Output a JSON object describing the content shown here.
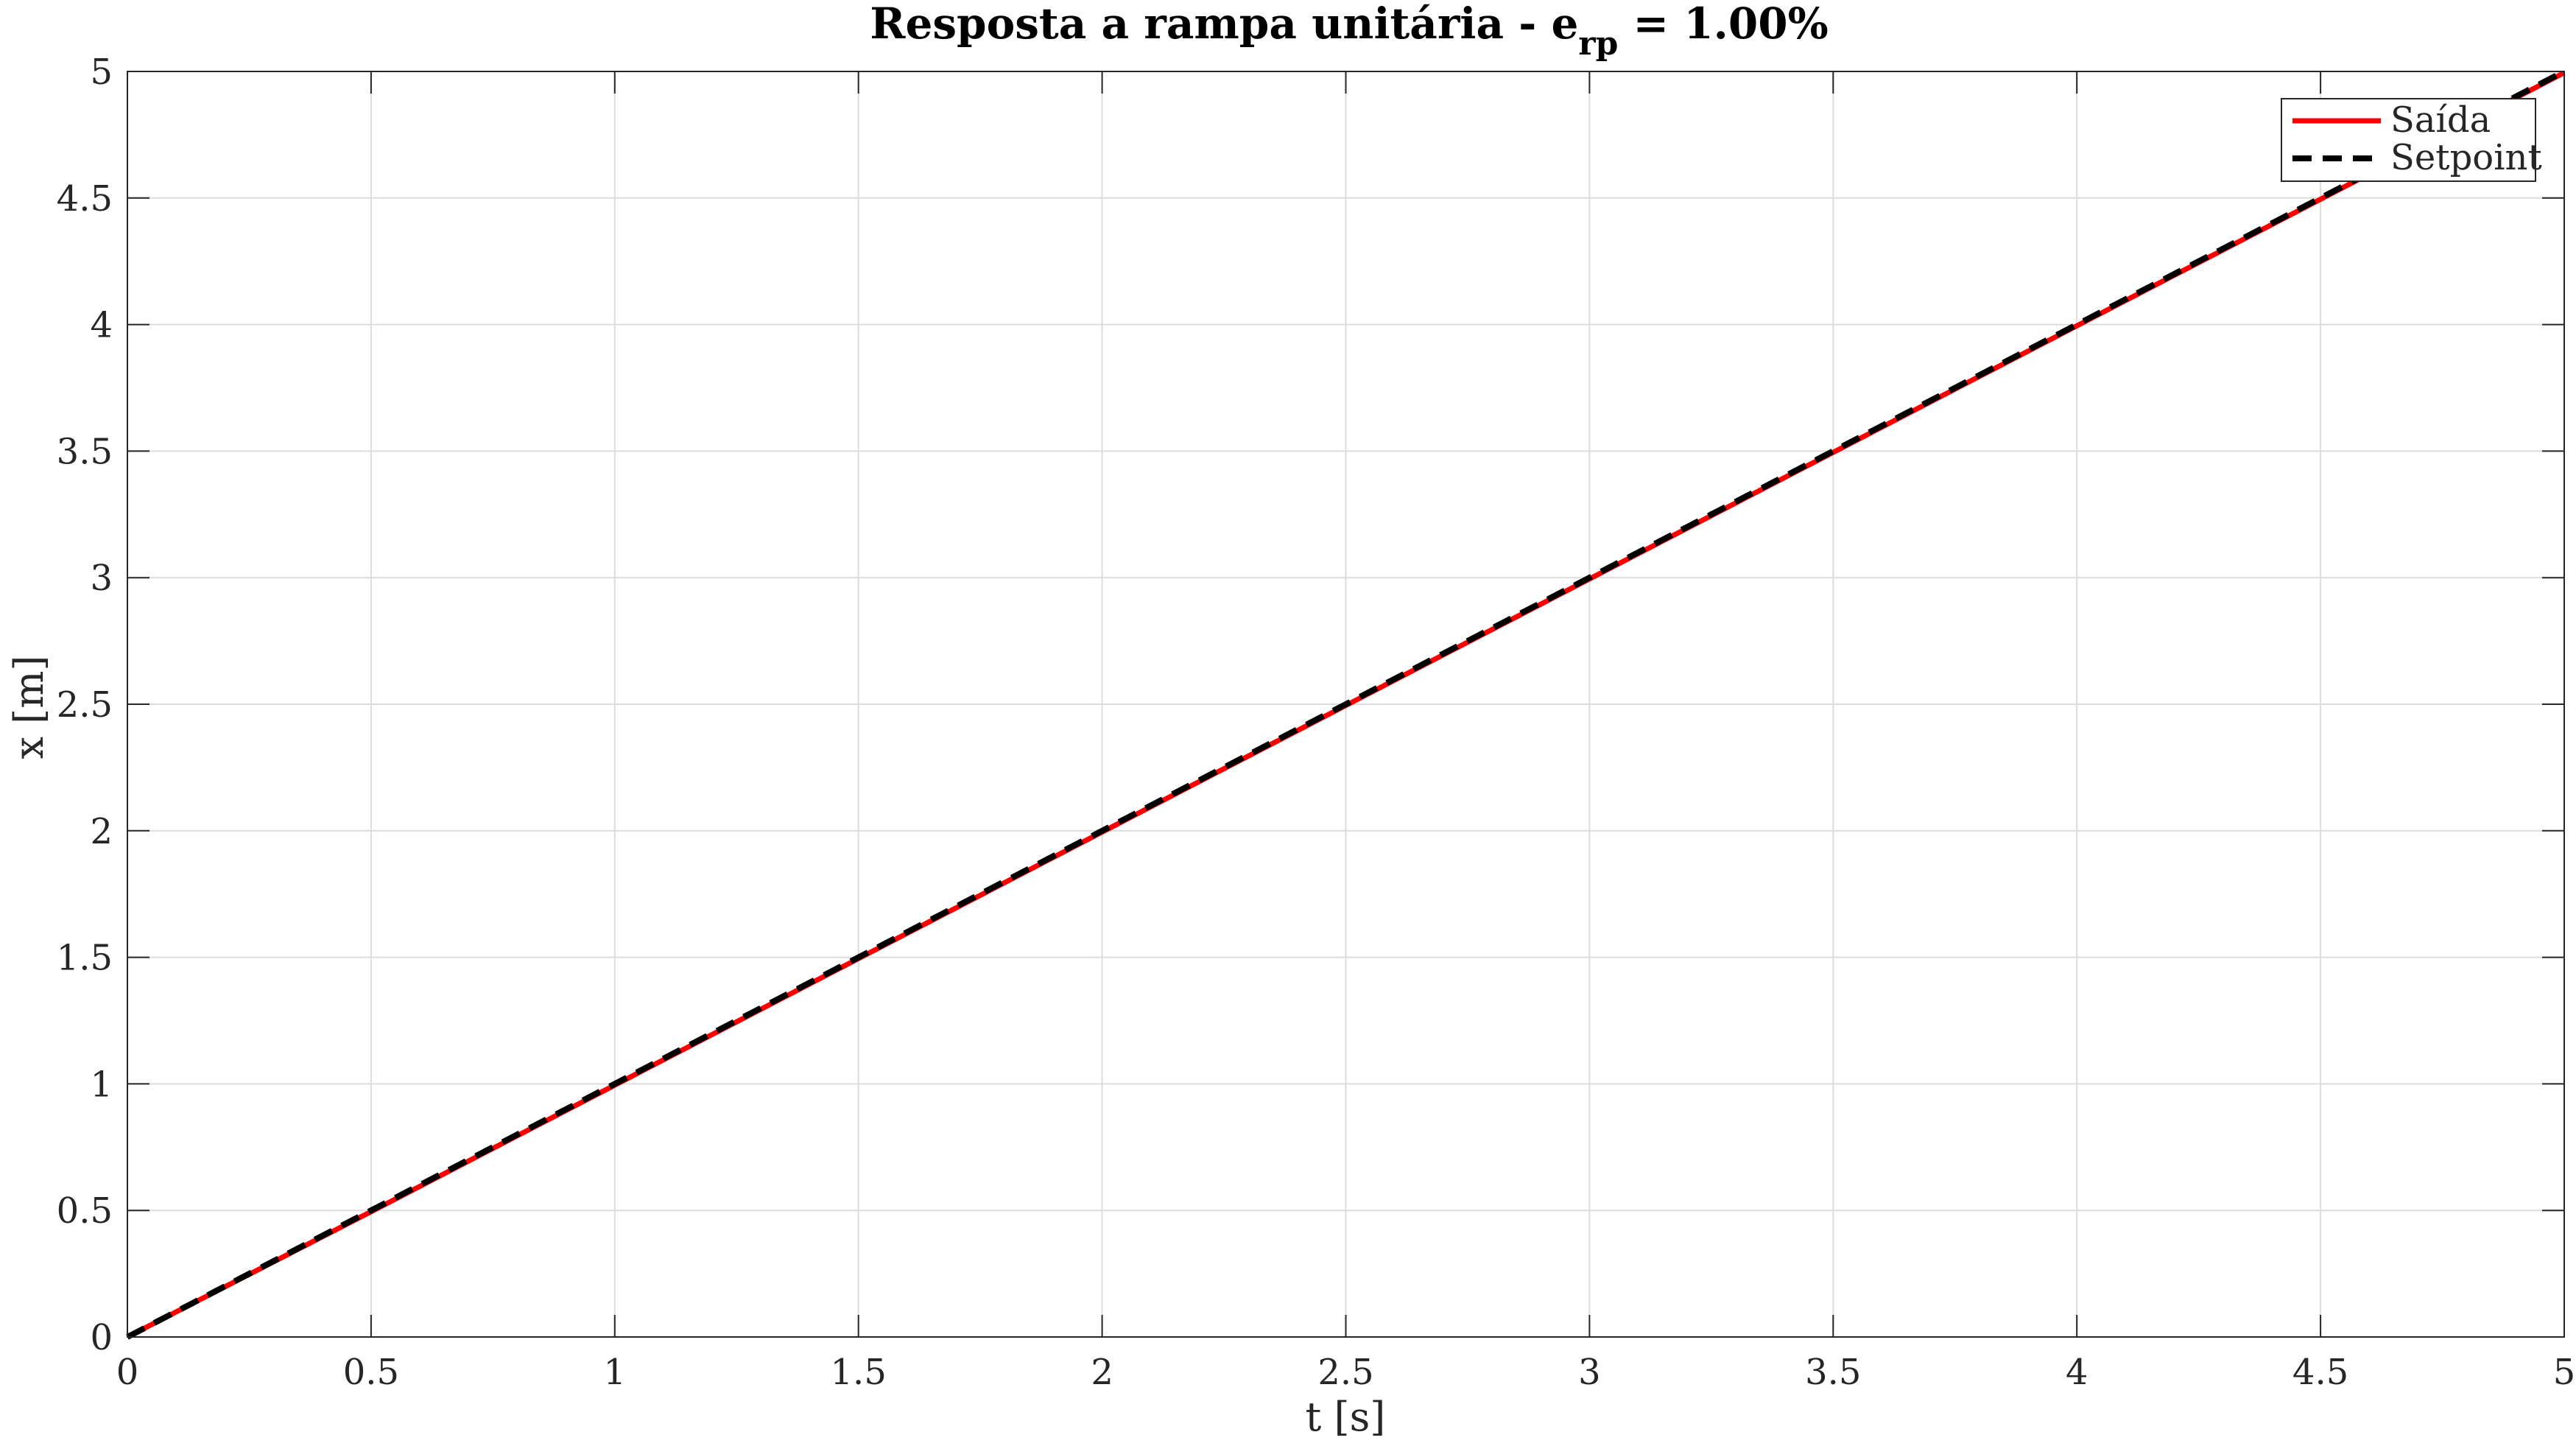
{
  "chart_data": {
    "type": "line",
    "title_main": "Resposta a rampa unitária - e",
    "title_sub": "rp",
    "title_tail": " = 1.00%",
    "xlabel": "t [s]",
    "ylabel": "x [m]",
    "xlim": [
      0,
      5
    ],
    "ylim": [
      0,
      5
    ],
    "xticks": [
      "0",
      "0.5",
      "1",
      "1.5",
      "2",
      "2.5",
      "3",
      "3.5",
      "4",
      "4.5",
      "5"
    ],
    "yticks": [
      "0",
      "0.5",
      "1",
      "1.5",
      "2",
      "2.5",
      "3",
      "3.5",
      "4",
      "4.5",
      "5"
    ],
    "grid": true,
    "legend_position": "top-right",
    "series": [
      {
        "name": "Saída",
        "color": "#ff0000",
        "style": "solid",
        "x": [
          0,
          0.5,
          1,
          1.5,
          2,
          2.5,
          3,
          3.5,
          4,
          4.5,
          5
        ],
        "y": [
          0,
          0.495,
          0.995,
          1.495,
          1.995,
          2.495,
          2.995,
          3.495,
          3.995,
          4.495,
          4.995
        ]
      },
      {
        "name": "Setpoint",
        "color": "#000000",
        "style": "dashed",
        "x": [
          0,
          5
        ],
        "y": [
          0,
          5
        ]
      }
    ]
  }
}
